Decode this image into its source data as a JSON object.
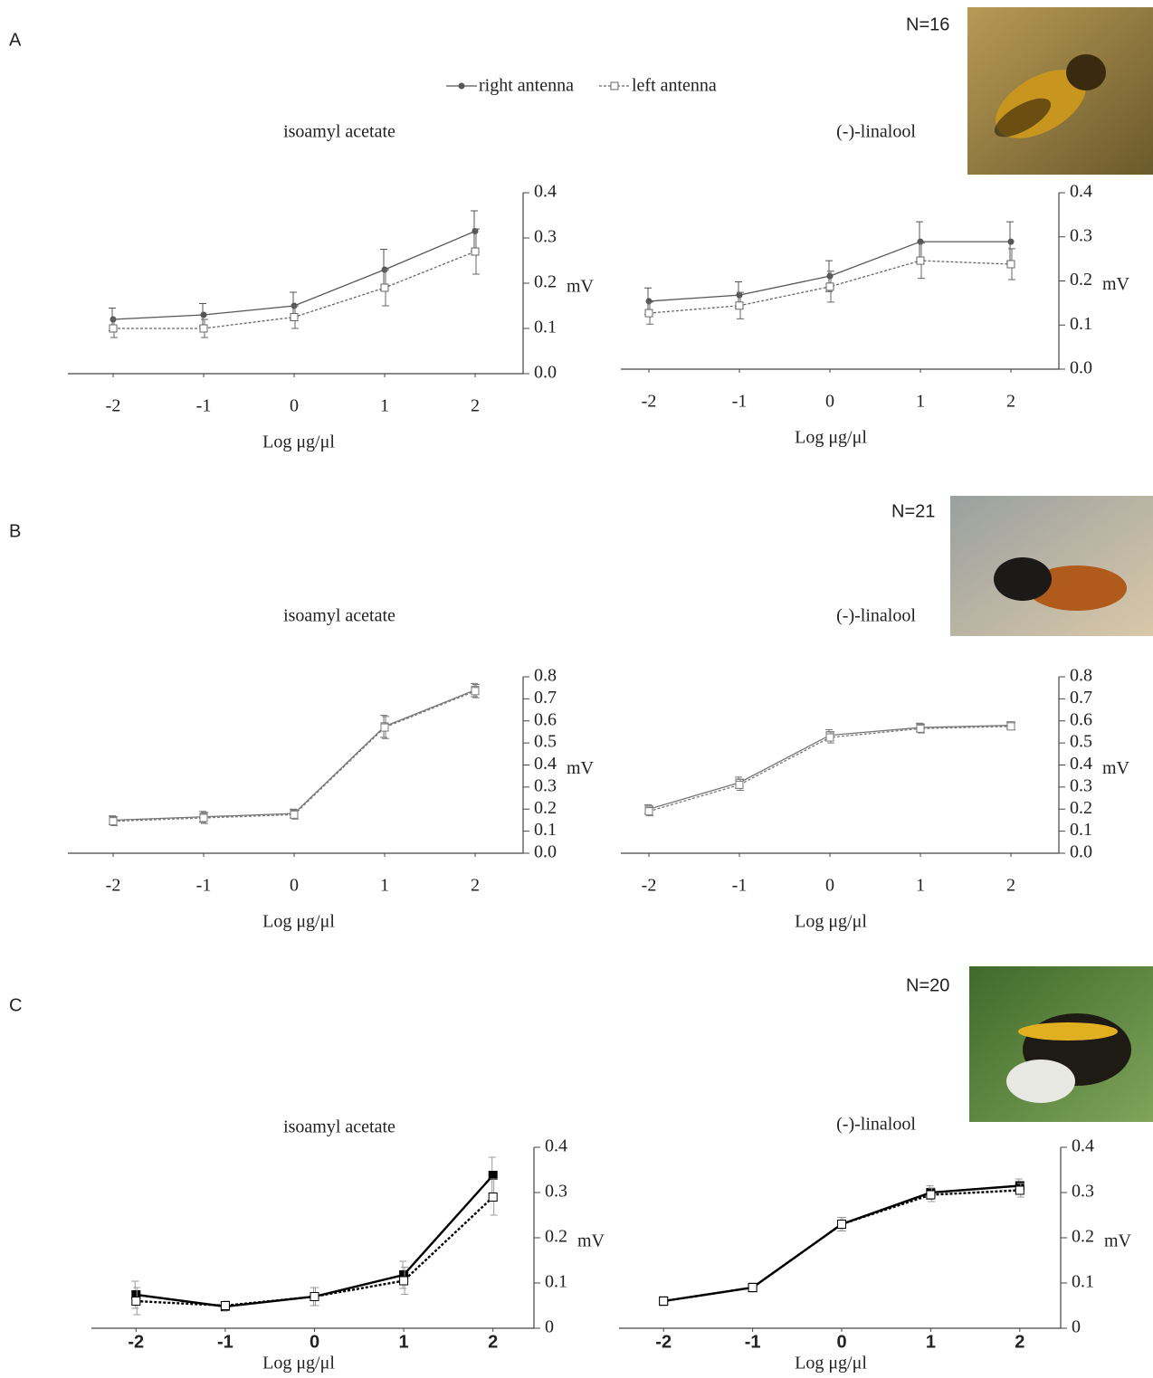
{
  "panels": [
    {
      "label": "A",
      "n": "N=16"
    },
    {
      "label": "B",
      "n": "N=21"
    },
    {
      "label": "C",
      "n": "N=20"
    }
  ],
  "chart_data": [
    {
      "type": "line",
      "title": "isoamyl acetate",
      "x_label": "Log μg/μl",
      "y_label": "mV",
      "x": [
        -2,
        -1,
        0,
        1,
        2
      ],
      "xlim": [
        -2.5,
        2.5
      ],
      "xticks": [
        -2,
        -1,
        0,
        1,
        2
      ],
      "ylim": [
        0,
        0.4
      ],
      "yticks": [
        {
          "value": 0,
          "label": "0.0"
        },
        0.1,
        0.2,
        0.3,
        0.4
      ],
      "series": [
        {
          "name": "right antenna",
          "color": "#555555",
          "marker": "circle",
          "filled": true,
          "dash": false,
          "values": [
            0.12,
            0.13,
            0.15,
            0.23,
            0.315
          ],
          "errors": [
            0.025,
            0.025,
            0.03,
            0.045,
            0.045
          ]
        },
        {
          "name": "left antenna",
          "color": "#666666",
          "marker": "square",
          "filled": false,
          "dash": true,
          "values": [
            0.1,
            0.1,
            0.125,
            0.19,
            0.27
          ],
          "errors": [
            0.02,
            0.02,
            0.025,
            0.04,
            0.05
          ]
        }
      ]
    },
    {
      "type": "line",
      "title": "(-)-linalool",
      "x_label": "Log μg/μl",
      "y_label": "mV",
      "x": [
        -2,
        -1,
        0,
        1,
        2
      ],
      "xlim": [
        -2.5,
        2.5
      ],
      "xticks": [
        -2,
        -1,
        0,
        1,
        2
      ],
      "ylim": [
        0,
        0.4
      ],
      "yticks": [
        {
          "value": 0,
          "label": "0.0"
        },
        0.1,
        0.2,
        0.3,
        0.4
      ],
      "series": [
        {
          "color": "#555555",
          "marker": "circle",
          "filled": true,
          "dash": false,
          "values": [
            0.154,
            0.168,
            0.211,
            0.289,
            0.289
          ],
          "errors": [
            0.03,
            0.03,
            0.035,
            0.045,
            0.045
          ]
        },
        {
          "color": "#666666",
          "marker": "square",
          "filled": false,
          "dash": true,
          "values": [
            0.127,
            0.144,
            0.187,
            0.246,
            0.238
          ],
          "errors": [
            0.025,
            0.03,
            0.035,
            0.04,
            0.035
          ]
        }
      ]
    },
    {
      "type": "line",
      "title": "isoamyl acetate",
      "x_label": "Log μg/μl",
      "y_label": "mV",
      "x": [
        -2,
        -1,
        0,
        1,
        2
      ],
      "xlim": [
        -2.5,
        2.5
      ],
      "xticks": [
        -2,
        -1,
        0,
        1,
        2
      ],
      "ylim": [
        0,
        0.8
      ],
      "yticks": [
        {
          "value": 0,
          "label": "0.0"
        },
        0.1,
        0.2,
        0.3,
        0.4,
        0.5,
        0.6,
        0.7,
        0.8
      ],
      "series": [
        {
          "color": "#777777",
          "marker": "square",
          "filled": false,
          "dash": false,
          "values": [
            0.15,
            0.165,
            0.18,
            0.575,
            0.74
          ],
          "errors": [
            0.02,
            0.025,
            0.02,
            0.05,
            0.03
          ]
        },
        {
          "color": "#777777",
          "marker": "square",
          "filled": false,
          "dash": true,
          "values": [
            0.145,
            0.16,
            0.175,
            0.57,
            0.735
          ],
          "errors": [
            0.02,
            0.025,
            0.02,
            0.05,
            0.03
          ]
        }
      ]
    },
    {
      "type": "line",
      "title": "(-)-linalool",
      "x_label": "Log μg/μl",
      "y_label": "mV",
      "x": [
        -2,
        -1,
        0,
        1,
        2
      ],
      "xlim": [
        -2.5,
        2.5
      ],
      "xticks": [
        -2,
        -1,
        0,
        1,
        2
      ],
      "ylim": [
        0,
        0.8
      ],
      "yticks": [
        {
          "value": 0,
          "label": "0.0"
        },
        0.1,
        0.2,
        0.3,
        0.4,
        0.5,
        0.6,
        0.7,
        0.8
      ],
      "series": [
        {
          "color": "#777777",
          "marker": "square",
          "filled": false,
          "dash": false,
          "values": [
            0.2,
            0.32,
            0.535,
            0.57,
            0.58
          ],
          "errors": [
            0.02,
            0.025,
            0.025,
            0.02,
            0.015
          ]
        },
        {
          "color": "#777777",
          "marker": "square",
          "filled": false,
          "dash": true,
          "values": [
            0.19,
            0.31,
            0.525,
            0.565,
            0.575
          ],
          "errors": [
            0.02,
            0.025,
            0.025,
            0.02,
            0.015
          ]
        }
      ]
    },
    {
      "type": "line",
      "title": "isoamyl acetate",
      "x_label": "Log μg/μl",
      "y_label": "mV",
      "x": [
        -2,
        -1,
        0,
        1,
        2
      ],
      "xlim": [
        -2.5,
        2.5
      ],
      "xticks": [
        -2,
        -1,
        0,
        1,
        2
      ],
      "ylim": [
        0,
        0.4
      ],
      "yticks": [
        0,
        0.1,
        0.2,
        0.3,
        0.4
      ],
      "series": [
        {
          "color": "#000000",
          "marker": "square",
          "filled": true,
          "dash": false,
          "values": [
            0.074,
            0.048,
            0.07,
            0.118,
            0.338
          ],
          "errors": [
            0.03,
            0.01,
            0.02,
            0.03,
            0.04
          ]
        },
        {
          "color": "#000000",
          "marker": "square",
          "filled": false,
          "dash": true,
          "values": [
            0.06,
            0.05,
            0.07,
            0.105,
            0.29
          ],
          "errors": [
            0.03,
            0.01,
            0.02,
            0.03,
            0.04
          ]
        }
      ]
    },
    {
      "type": "line",
      "title": "(-)-linalool",
      "x_label": "Log μg/μl",
      "y_label": "mV",
      "x": [
        -2,
        -1,
        0,
        1,
        2
      ],
      "xlim": [
        -2.5,
        2.5
      ],
      "xticks": [
        -2,
        -1,
        0,
        1,
        2
      ],
      "ylim": [
        0,
        0.4
      ],
      "yticks": [
        0,
        0.1,
        0.2,
        0.3,
        0.4
      ],
      "series": [
        {
          "color": "#000000",
          "marker": "square",
          "filled": true,
          "dash": false,
          "values": [
            0.06,
            0.09,
            0.23,
            0.3,
            0.315
          ],
          "errors": [
            0.01,
            0.01,
            0.015,
            0.015,
            0.015
          ]
        },
        {
          "color": "#000000",
          "marker": "square",
          "filled": false,
          "dash": true,
          "values": [
            0.06,
            0.09,
            0.23,
            0.295,
            0.305
          ],
          "errors": [
            0.01,
            0.01,
            0.015,
            0.015,
            0.015
          ]
        }
      ]
    }
  ]
}
